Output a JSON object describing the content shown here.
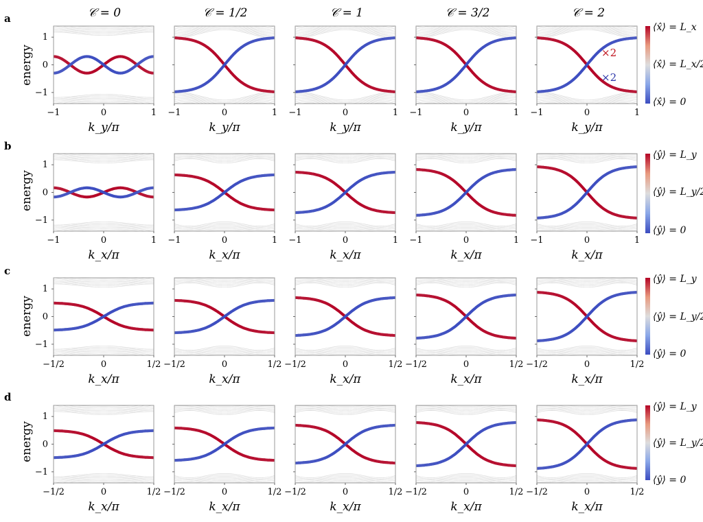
{
  "column_titles": [
    "𝒞 = 0",
    "𝒞 = 1/2",
    "𝒞 = 1",
    "𝒞 = 3/2",
    "𝒞 = 2"
  ],
  "colors": {
    "low": "#3b4cc0",
    "mid": "#dddddd",
    "high": "#b40426",
    "bulk": "#cfcfcf",
    "mult_red": "#c0141e",
    "mult_blue": "#2a34a8"
  },
  "chart_data": [
    {
      "panel": "a",
      "type": "line",
      "ylabel": "energy",
      "xlabel": "k_y/π",
      "xticks": [
        "−1",
        "0",
        "1"
      ],
      "yticks": [
        "1",
        "0",
        "−1"
      ],
      "xlim": [
        -1,
        1
      ],
      "ylim": [
        -1.4,
        1.4
      ],
      "colorbar": {
        "top": "⟨x̂⟩ = L_x",
        "mid": "⟨x̂⟩ = L_x/2",
        "bottom": "⟨x̂⟩ = 0"
      },
      "annotations": [
        "×2",
        "×2"
      ]
    },
    {
      "panel": "b",
      "type": "line",
      "ylabel": "energy",
      "xlabel": "k_x/π",
      "xticks": [
        "−1",
        "0",
        "1"
      ],
      "yticks": [
        "1",
        "0",
        "−1"
      ],
      "xlim": [
        -1,
        1
      ],
      "ylim": [
        -1.4,
        1.4
      ],
      "colorbar": {
        "top": "⟨ŷ⟩ = L_y",
        "mid": "⟨ŷ⟩ = L_y/2",
        "bottom": "⟨ŷ⟩ = 0"
      }
    },
    {
      "panel": "c",
      "type": "line",
      "ylabel": "energy",
      "xlabel": "k_x/π",
      "xticks": [
        "−1/2",
        "0",
        "1/2"
      ],
      "yticks": [
        "1",
        "0",
        "−1"
      ],
      "xlim": [
        -0.5,
        0.5
      ],
      "ylim": [
        -1.4,
        1.4
      ],
      "colorbar": {
        "top": "⟨ŷ⟩ = L_y",
        "mid": "⟨ŷ⟩ = L_y/2",
        "bottom": "⟨ŷ⟩ = 0"
      }
    },
    {
      "panel": "d",
      "type": "line",
      "ylabel": "energy",
      "xlabel": "k_x/π",
      "xticks": [
        "−1/2",
        "0",
        "1/2"
      ],
      "yticks": [
        "1",
        "0",
        "−1"
      ],
      "xlim": [
        -0.5,
        0.5
      ],
      "ylim": [
        -1.4,
        1.4
      ],
      "colorbar": {
        "top": "⟨ŷ⟩ = L_y",
        "mid": "⟨ŷ⟩ = L_y/2",
        "bottom": "⟨ŷ⟩ = 0"
      }
    }
  ]
}
